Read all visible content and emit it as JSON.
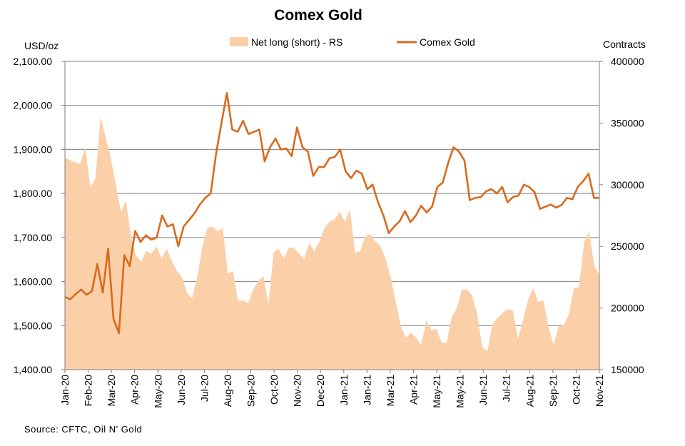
{
  "chart_data": {
    "type": "line",
    "title": "Comex Gold",
    "ylabel_left": "USD/oz",
    "ylabel_right": "Contracts",
    "source": "Source: CFTC, Oil N' Gold",
    "ylim_left": [
      1400,
      2100
    ],
    "ylim_right": [
      150000,
      400000
    ],
    "left_ticks": [
      "1,400.00",
      "1,500.00",
      "1,600.00",
      "1,700.00",
      "1,800.00",
      "1,900.00",
      "2,000.00",
      "2,100.00"
    ],
    "right_ticks": [
      "150000",
      "200000",
      "250000",
      "300000",
      "350000",
      "400000"
    ],
    "x_ticks": [
      "Jan-20",
      "Feb-20",
      "Mar-20",
      "Apr-20",
      "May-20",
      "Jun-20",
      "Jul-20",
      "Aug-20",
      "Sep-20",
      "Oct-20",
      "Nov-20",
      "Dec-20",
      "Jan-21",
      "Jan-21",
      "Mar-21",
      "Apr-21",
      "May-21",
      "May-21",
      "Jun-21",
      "Jul-21",
      "Aug-21",
      "Sep-21",
      "Oct-21",
      "Nov-21"
    ],
    "grid": "horizontal",
    "legend_position": "top",
    "series": [
      {
        "name": "Net long (short) - RS",
        "type": "area",
        "axis": "right",
        "color": "#FBCFA8",
        "x_start": "2020-01-01",
        "x_step_weeks": 1,
        "values": [
          322000,
          320000,
          318000,
          317000,
          330000,
          298000,
          305000,
          355000,
          338000,
          322000,
          300000,
          278000,
          287000,
          258000,
          242000,
          238000,
          246000,
          244000,
          250000,
          240000,
          248000,
          238000,
          230000,
          225000,
          212000,
          208000,
          225000,
          250000,
          265000,
          266000,
          262000,
          265000,
          228000,
          230000,
          206000,
          206000,
          204000,
          215000,
          222000,
          226000,
          203000,
          245000,
          248000,
          240000,
          249000,
          249000,
          244000,
          240000,
          253000,
          246000,
          254000,
          265000,
          270000,
          272000,
          278000,
          270000,
          280000,
          245000,
          246000,
          258000,
          260000,
          254000,
          250000,
          240000,
          225000,
          205000,
          185000,
          176000,
          180000,
          176000,
          170000,
          190000,
          182000,
          183000,
          172000,
          172000,
          193000,
          200000,
          215000,
          215000,
          210000,
          195000,
          168000,
          165000,
          187000,
          192000,
          196000,
          199000,
          198000,
          175000,
          190000,
          207000,
          216000,
          205000,
          206000,
          185000,
          170000,
          185000,
          186000,
          195000,
          216000,
          217000,
          253000,
          262000,
          234000,
          227000
        ]
      },
      {
        "name": "Comex Gold",
        "type": "line",
        "axis": "left",
        "color": "#D96A1E",
        "x_start": "2020-01-01",
        "x_step_weeks": 1,
        "values": [
          1565,
          1560,
          1572,
          1582,
          1570,
          1578,
          1640,
          1575,
          1675,
          1515,
          1483,
          1660,
          1635,
          1715,
          1690,
          1705,
          1695,
          1700,
          1750,
          1725,
          1730,
          1680,
          1725,
          1740,
          1755,
          1775,
          1790,
          1800,
          1890,
          1960,
          2028,
          1945,
          1940,
          1965,
          1935,
          1940,
          1945,
          1873,
          1905,
          1925,
          1900,
          1902,
          1885,
          1950,
          1905,
          1895,
          1840,
          1860,
          1860,
          1880,
          1883,
          1900,
          1850,
          1835,
          1852,
          1845,
          1810,
          1820,
          1780,
          1750,
          1710,
          1725,
          1737,
          1760,
          1735,
          1750,
          1772,
          1757,
          1770,
          1815,
          1825,
          1870,
          1905,
          1895,
          1875,
          1785,
          1790,
          1792,
          1805,
          1810,
          1800,
          1815,
          1780,
          1792,
          1795,
          1820,
          1815,
          1803,
          1765,
          1770,
          1775,
          1768,
          1774,
          1790,
          1787,
          1815,
          1828,
          1845,
          1790,
          1790
        ]
      }
    ]
  }
}
